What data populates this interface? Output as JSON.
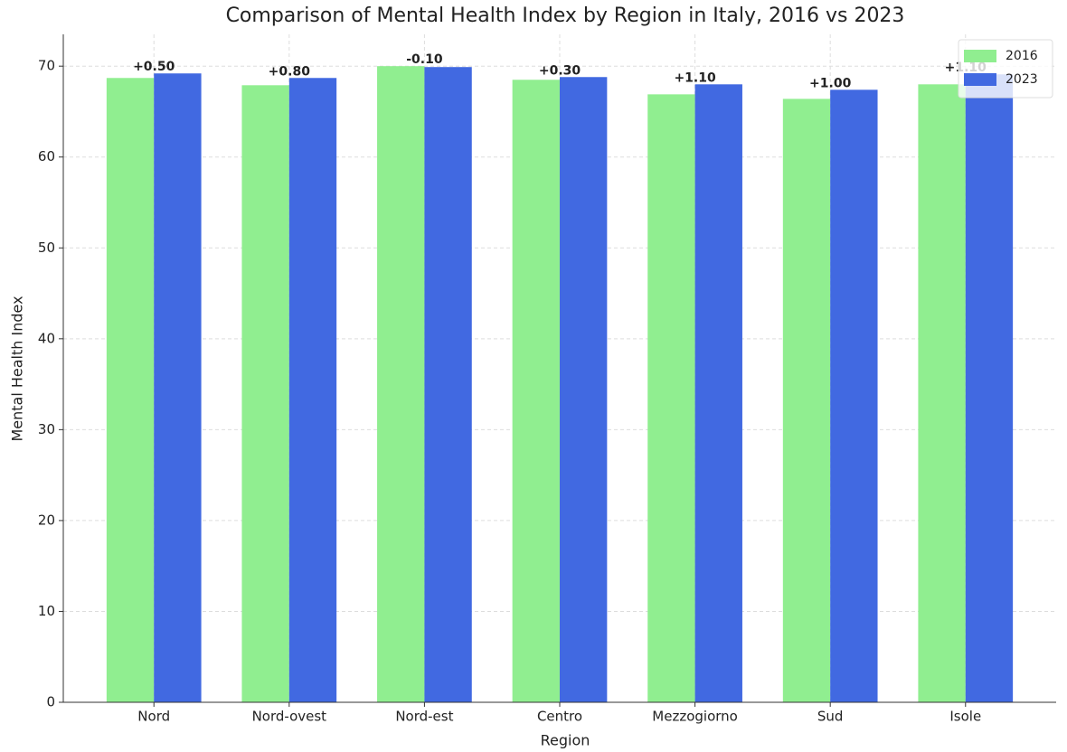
{
  "chart_data": {
    "type": "bar",
    "title": "Comparison of Mental Health Index by Region in Italy, 2016 vs 2023",
    "x_label": "Region",
    "y_label": "Mental Health Index",
    "categories": [
      "Nord",
      "Nord-ovest",
      "Nord-est",
      "Centro",
      "Mezzogiorno",
      "Sud",
      "Isole"
    ],
    "series": [
      {
        "name": "2016",
        "color": "#90ee90",
        "values": [
          68.7,
          67.9,
          70.0,
          68.5,
          66.9,
          66.4,
          68.0
        ]
      },
      {
        "name": "2023",
        "color": "#4169e1",
        "values": [
          69.2,
          68.7,
          69.9,
          68.8,
          68.0,
          67.4,
          69.1
        ]
      }
    ],
    "difference_labels": [
      "+0.50",
      "+0.80",
      "-0.10",
      "+0.30",
      "+1.10",
      "+1.00",
      "+1.10"
    ],
    "ylim": [
      0,
      73.5
    ],
    "yticks": [
      0,
      10,
      20,
      30,
      40,
      50,
      60,
      70
    ],
    "grid": true,
    "legend": "upper right"
  }
}
